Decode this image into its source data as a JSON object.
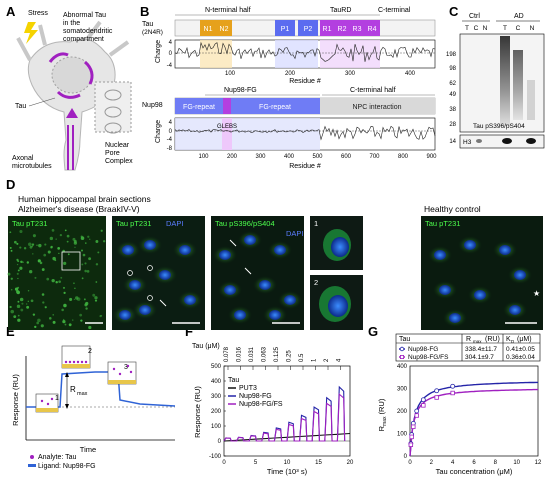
{
  "panel_labels": [
    "A",
    "B",
    "C",
    "D",
    "E",
    "F",
    "G"
  ],
  "panel_a": {
    "stress": "Stress",
    "abnormal": [
      "Abnormal Tau",
      "in the",
      "somatodendritic",
      "compartment"
    ],
    "tau": "Tau",
    "axonal": [
      "Axonal",
      "microtubules"
    ],
    "npc": [
      "Nuclear",
      "Pore",
      "Complex"
    ]
  },
  "panel_b": {
    "tau_label": [
      "Tau",
      "(2N4R)"
    ],
    "tau_sections": [
      "N-terminal half",
      "TauRD",
      "C-terminal"
    ],
    "tau_domains": [
      "N1",
      "N2",
      "P1",
      "P2",
      "R1",
      "R2",
      "R3",
      "R4"
    ],
    "charge_label": "Charge",
    "residue_label": "Residue #",
    "tau_ticks": [
      "100",
      "200",
      "300",
      "400"
    ],
    "tau_yticks": [
      "4",
      "0",
      "-4"
    ],
    "nup_label": "Nup98",
    "nup_sections": [
      "Nup98-FG",
      "C-terminal half"
    ],
    "nup_domains": [
      "FG-repeat",
      "FG-repeat",
      "NPC interaction"
    ],
    "glebs": "GLEBS",
    "nup_ticks": [
      "100",
      "200",
      "300",
      "400",
      "500",
      "600",
      "700",
      "800",
      "900"
    ],
    "nup_yticks": [
      "4",
      "0",
      "-4",
      "-8"
    ]
  },
  "panel_c": {
    "groups": [
      "Ctrl",
      "AD"
    ],
    "lanes": [
      "T",
      "C",
      "N",
      "T",
      "C",
      "N"
    ],
    "markers": [
      "198",
      "98",
      "62",
      "49",
      "38",
      "28",
      "14"
    ],
    "antibody": "Tau pS396/pS404",
    "h3": "H3"
  },
  "panel_d": {
    "title1": "Human hippocampal brain sections",
    "title2": "Alzheimer's disease (BraakIV-V)",
    "healthy": "Healthy control",
    "lbl_tau231": "Tau pT231",
    "lbl_tau231_dapi": "Tau pT231",
    "lbl_dapi": "DAPI",
    "lbl_pS": "Tau pS396/pS404",
    "lbl_healthy": "Tau pT231",
    "inset1": "1",
    "inset2": "2"
  },
  "panel_e": {
    "ylabel": "Response (RU)",
    "xlabel": "Time",
    "rmax": "R",
    "rmax_sub": "max",
    "states": [
      "1",
      "2",
      "3"
    ],
    "legend": [
      "Analyte: Tau",
      "Ligand: Nup98-FG"
    ]
  },
  "panel_f": {
    "conc_label": "Tau (μM)",
    "concs": [
      "0.078",
      "0.016",
      "0.031",
      "0.063",
      "0.125",
      "0.25",
      "0.5",
      "1",
      "2",
      "4"
    ],
    "ylabel": "Response (RU)",
    "xlabel": "Time (10³ s)",
    "legend_title": "Tau",
    "legend": [
      "PUT3",
      "Nup98-FG",
      "Nup98-FG/FS"
    ],
    "xticks": [
      "0",
      "5",
      "10",
      "15",
      "20"
    ],
    "yticks": [
      "500",
      "400",
      "300",
      "200",
      "100",
      "0",
      "-100"
    ]
  },
  "panel_g": {
    "table_header": [
      "Tau",
      "R",
      "max",
      "(RU)",
      "K",
      "D",
      "(μM)"
    ],
    "rows": [
      {
        "name": "Nup98-FG",
        "rmax": "338.4±11.7",
        "kd": "0.41±0.05"
      },
      {
        "name": "Nup98-FG/FS",
        "rmax": "304.1±9.7",
        "kd": "0.36±0.04"
      }
    ],
    "ylabel": "R",
    "ylabel_sub": "max",
    "ylabel_unit": "(RU)",
    "xlabel": "Tau concentration (μM)",
    "xticks": [
      "0",
      "2",
      "4",
      "6",
      "8",
      "10",
      "12"
    ],
    "yticks": [
      "400",
      "300",
      "200",
      "100",
      "0"
    ]
  },
  "colors": {
    "purple": "#a020c0",
    "blue": "#2424a8",
    "tau_n": "#e6a11c",
    "tau_p": "#5b6cf0",
    "tau_r": "#b33fe0",
    "nup_fg": "#6f7cf5"
  },
  "chart_data": [
    {
      "type": "line",
      "title": "",
      "xlabel": "Time (10³ s)",
      "ylabel": "Response (RU)",
      "xlim": [
        0,
        20
      ],
      "ylim": [
        -100,
        500
      ],
      "series": [
        {
          "name": "PUT3",
          "x": [
            0,
            2,
            4,
            6,
            8,
            10,
            12,
            14,
            16,
            18,
            20
          ],
          "y": [
            0,
            5,
            10,
            15,
            20,
            25,
            30,
            35,
            40,
            45,
            50
          ]
        },
        {
          "name": "Nup98-FG",
          "x": [
            1,
            2,
            3,
            4,
            5,
            6,
            7,
            8,
            9,
            10,
            11,
            12,
            13,
            14,
            15,
            16,
            17,
            18,
            19,
            20
          ],
          "y": [
            30,
            0,
            40,
            0,
            60,
            0,
            80,
            0,
            100,
            0,
            130,
            0,
            160,
            0,
            200,
            0,
            260,
            0,
            330,
            0
          ]
        },
        {
          "name": "Nup98-FG/FS",
          "x": [
            1,
            2,
            3,
            4,
            5,
            6,
            7,
            8,
            9,
            10,
            11,
            12,
            13,
            14,
            15,
            16,
            17,
            18,
            19,
            20
          ],
          "y": [
            25,
            0,
            35,
            0,
            55,
            0,
            75,
            0,
            95,
            0,
            120,
            0,
            150,
            0,
            185,
            0,
            240,
            0,
            300,
            0
          ]
        }
      ]
    },
    {
      "type": "scatter",
      "title": "",
      "xlabel": "Tau concentration (μM)",
      "ylabel": "Rmax (RU)",
      "xlim": [
        0,
        12
      ],
      "ylim": [
        0,
        400
      ],
      "series": [
        {
          "name": "Nup98-FG",
          "x": [
            0.078,
            0.156,
            0.31,
            0.63,
            1.25,
            2.5,
            4
          ],
          "y": [
            55,
            95,
            145,
            200,
            250,
            290,
            310
          ]
        },
        {
          "name": "Nup98-FG/FS",
          "x": [
            0.078,
            0.156,
            0.31,
            0.63,
            1.25,
            2.5,
            4
          ],
          "y": [
            50,
            85,
            130,
            180,
            225,
            260,
            280
          ]
        }
      ],
      "fit": [
        {
          "name": "Nup98-FG",
          "rmax": 338.4,
          "kd": 0.41
        },
        {
          "name": "Nup98-FG/FS",
          "rmax": 304.1,
          "kd": 0.36
        }
      ]
    }
  ]
}
